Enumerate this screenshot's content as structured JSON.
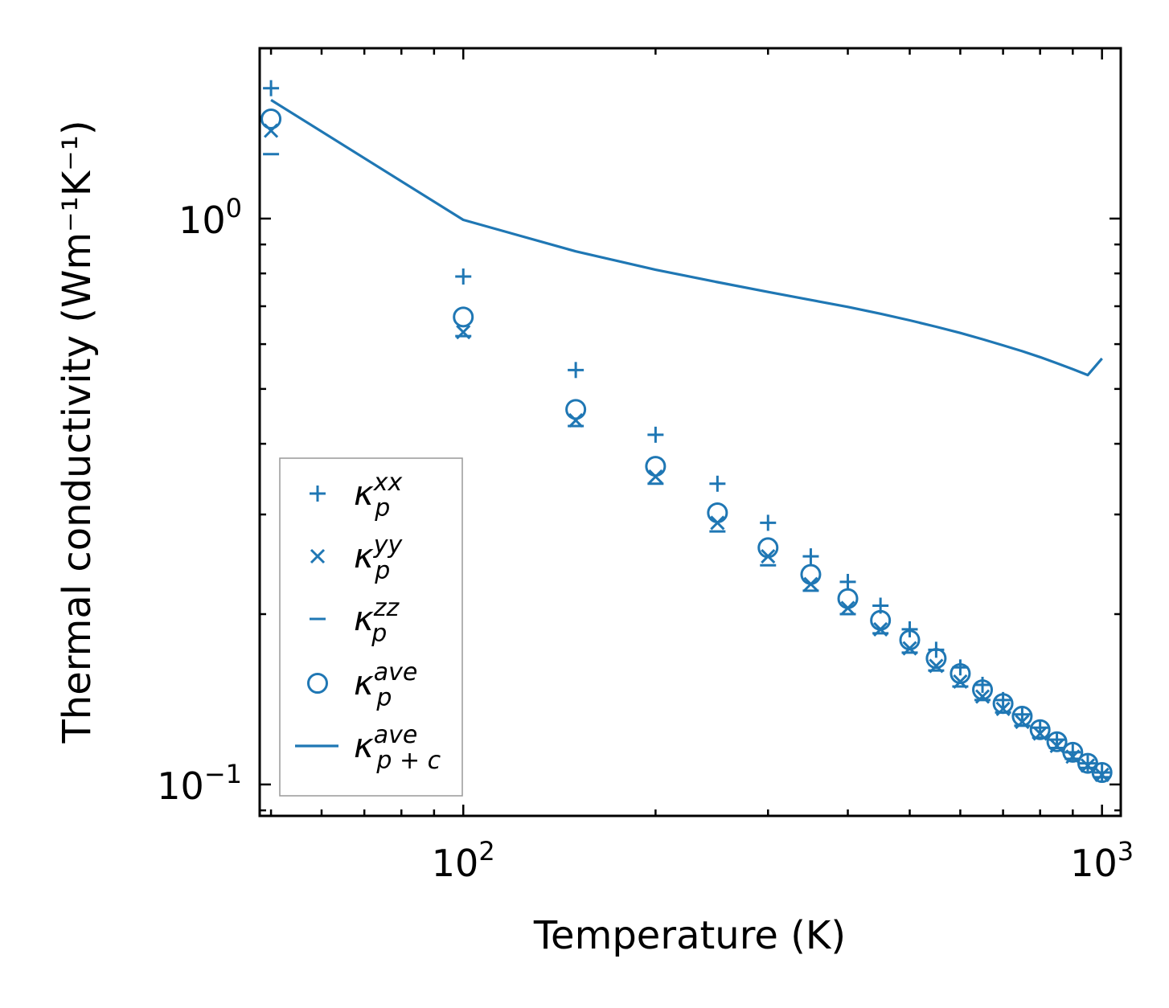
{
  "chart_data": {
    "type": "scatter",
    "title": "",
    "xlabel": "Temperature (K)",
    "ylabel": "Thermal conductivity (Wm⁻¹K⁻¹)",
    "xscale": "log",
    "yscale": "log",
    "xlim": [
      48,
      1070
    ],
    "ylim": [
      0.088,
      2.0
    ],
    "x_ticks": [
      {
        "value": 100,
        "base": "10",
        "exp": "2"
      },
      {
        "value": 1000,
        "base": "10",
        "exp": "3"
      }
    ],
    "y_ticks": [
      {
        "value": 0.1,
        "base": "10",
        "exp": "−1"
      },
      {
        "value": 1.0,
        "base": "10",
        "exp": "0"
      }
    ],
    "color": "#1f77b4",
    "legend_position": "lower-left",
    "x": [
      50,
      100,
      150,
      200,
      250,
      300,
      350,
      400,
      450,
      500,
      550,
      600,
      650,
      700,
      750,
      800,
      850,
      900,
      950,
      1000
    ],
    "series": [
      {
        "name": "kappa_p_xx",
        "label_main": "κ",
        "label_sub": "p",
        "label_sup": "xx",
        "marker": "plus",
        "values": [
          1.7,
          0.79,
          0.54,
          0.415,
          0.34,
          0.29,
          0.253,
          0.228,
          0.207,
          0.188,
          0.173,
          0.161,
          0.15,
          0.141,
          0.133,
          0.126,
          0.12,
          0.114,
          0.109,
          0.105
        ]
      },
      {
        "name": "kappa_p_yy",
        "label_main": "κ",
        "label_sub": "p",
        "label_sup": "yy",
        "marker": "x",
        "values": [
          1.43,
          0.63,
          0.44,
          0.35,
          0.29,
          0.253,
          0.226,
          0.205,
          0.188,
          0.174,
          0.162,
          0.152,
          0.143,
          0.136,
          0.129,
          0.123,
          0.117,
          0.112,
          0.108,
          0.104
        ]
      },
      {
        "name": "kappa_p_zz",
        "label_main": "κ",
        "label_sub": "p",
        "label_sup": "zz",
        "marker": "hline",
        "values": [
          1.3,
          0.62,
          0.43,
          0.34,
          0.28,
          0.244,
          0.22,
          0.2,
          0.185,
          0.171,
          0.159,
          0.149,
          0.141,
          0.134,
          0.127,
          0.121,
          0.116,
          0.111,
          0.107,
          0.103
        ]
      },
      {
        "name": "kappa_p_ave",
        "label_main": "κ",
        "label_sub": "p",
        "label_sup": "ave",
        "marker": "circle",
        "values": [
          1.5,
          0.67,
          0.46,
          0.365,
          0.302,
          0.262,
          0.235,
          0.213,
          0.195,
          0.18,
          0.167,
          0.157,
          0.147,
          0.139,
          0.132,
          0.125,
          0.119,
          0.114,
          0.109,
          0.105
        ]
      },
      {
        "name": "kappa_pc_ave",
        "label_main": "κ",
        "label_sub": "p + c",
        "label_sup": "ave",
        "marker": "line",
        "values": [
          1.62,
          0.995,
          0.875,
          0.812,
          0.772,
          0.742,
          0.718,
          0.698,
          0.679,
          0.661,
          0.644,
          0.628,
          0.612,
          0.597,
          0.583,
          0.569,
          0.555,
          0.542,
          0.529,
          0.566
        ]
      }
    ]
  }
}
